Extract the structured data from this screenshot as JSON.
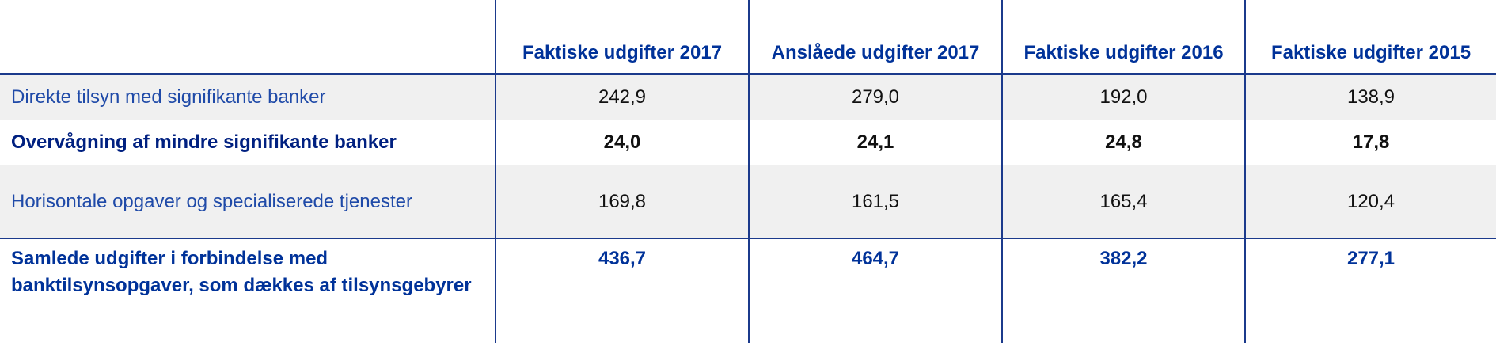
{
  "table": {
    "header": [
      "Faktiske udgifter 2017",
      "Anslåede udgifter 2017",
      "Faktiske udgifter 2016",
      "Faktiske udgifter 2015"
    ],
    "rows": [
      [
        "Direkte tilsyn med signifikante banker",
        "242,9",
        "279,0",
        "192,0",
        "138,9"
      ],
      [
        "Overvågning af mindre signifikante banker",
        "24,0",
        "24,1",
        "24,8",
        "17,8"
      ],
      [
        "Horisontale opgaver og specialiserede tjenester",
        "169,8",
        "161,5",
        "165,4",
        "120,4"
      ],
      [
        "Samlede udgifter i forbindelse med banktilsynsopgaver, som dækkes af tilsynsgebyrer",
        "436,7",
        "464,7",
        "382,2",
        "277,1"
      ]
    ]
  }
}
